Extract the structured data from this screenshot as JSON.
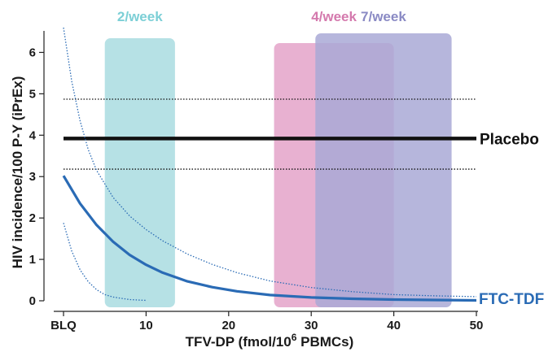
{
  "chart_data": {
    "type": "line",
    "xlabel": "TFV-DP (fmol/10",
    "xlabel_sup": "6",
    "xlabel_end": " PBMCs)",
    "ylabel": "HIV incidence/100 P-Y (iPrEx)",
    "xlim": [
      0,
      50
    ],
    "ylim": [
      0,
      6.5
    ],
    "x_ticks": [
      {
        "value": 0,
        "label": "BLQ"
      },
      {
        "value": 10,
        "label": "10"
      },
      {
        "value": 20,
        "label": "20"
      },
      {
        "value": 30,
        "label": "30"
      },
      {
        "value": 40,
        "label": "40"
      },
      {
        "value": 50,
        "label": "50"
      }
    ],
    "y_ticks": [
      0,
      1,
      2,
      3,
      4,
      5,
      6
    ],
    "grid": false,
    "bands": [
      {
        "label": "2/week",
        "x_start": 5,
        "x_end": 13.5,
        "color": "#a9dce0",
        "label_color": "#7ccfd6"
      },
      {
        "label": "4/week",
        "x_start": 25.5,
        "x_end": 40,
        "color": "#e4a3c9",
        "label_color": "#d479ad"
      },
      {
        "label": "7/week",
        "x_start": 30.5,
        "x_end": 47,
        "color": "#a9a9d6",
        "label_color": "#8a8ac4"
      }
    ],
    "series": [
      {
        "name": "Placebo",
        "color": "#111111",
        "value": 3.92,
        "ci_upper": 4.87,
        "ci_lower": 3.18
      },
      {
        "name": "FTC-TDF",
        "color": "#2a6bb5",
        "x": [
          0,
          2,
          4,
          6,
          8,
          10,
          12,
          15,
          18,
          21,
          25,
          30,
          35,
          40,
          45,
          50
        ],
        "y": [
          3.02,
          2.35,
          1.83,
          1.43,
          1.11,
          0.87,
          0.68,
          0.47,
          0.33,
          0.23,
          0.14,
          0.08,
          0.05,
          0.03,
          0.02,
          0.01
        ],
        "ci_upper": {
          "x": [
            0,
            1,
            2,
            3,
            4,
            6,
            8,
            10,
            12,
            15,
            18,
            21,
            25,
            30,
            35,
            40,
            45,
            50
          ],
          "y": [
            6.6,
            5.3,
            4.35,
            3.65,
            3.15,
            2.5,
            2.05,
            1.72,
            1.45,
            1.13,
            0.88,
            0.68,
            0.48,
            0.32,
            0.22,
            0.15,
            0.12,
            0.1
          ]
        },
        "ci_lower": {
          "x": [
            0,
            1,
            2,
            3,
            4,
            5,
            6,
            8,
            10
          ],
          "y": [
            1.88,
            1.2,
            0.75,
            0.46,
            0.27,
            0.15,
            0.09,
            0.03,
            0.01
          ]
        }
      }
    ]
  }
}
